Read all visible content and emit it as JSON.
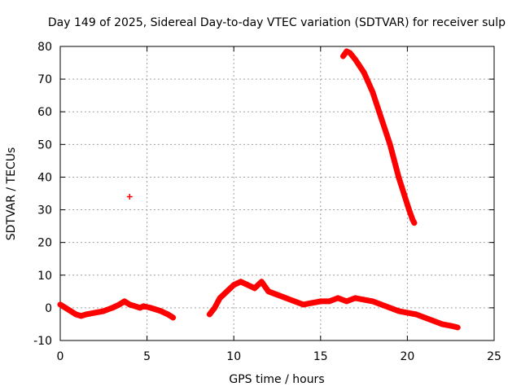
{
  "chart_data": {
    "type": "scatter",
    "title": "Day 149 of 2025, Sidereal Day-to-day VTEC variation (SDTVAR) for receiver sulp",
    "xlabel": "GPS time / hours",
    "ylabel": "SDTVAR / TECUs",
    "xlim": [
      0,
      25
    ],
    "ylim": [
      -10,
      80
    ],
    "grid": true,
    "xticks": [
      0,
      5,
      10,
      15,
      20,
      25
    ],
    "yticks": [
      -10,
      0,
      10,
      20,
      30,
      40,
      50,
      60,
      70,
      80
    ],
    "xtick_labels": [
      "0",
      "5",
      "10",
      "15",
      "20",
      "25"
    ],
    "ytick_labels": [
      "-10",
      "0",
      "10",
      "20",
      "30",
      "40",
      "50",
      "60",
      "70",
      "80"
    ],
    "marker": "+",
    "color": "#ff0000",
    "series": [
      {
        "name": "segment-1",
        "points": [
          [
            0,
            1
          ],
          [
            0.3,
            0
          ],
          [
            0.6,
            -1
          ],
          [
            0.9,
            -2
          ],
          [
            1.2,
            -2.5
          ],
          [
            1.5,
            -2
          ],
          [
            2.0,
            -1.5
          ],
          [
            2.5,
            -1
          ],
          [
            3.0,
            0
          ],
          [
            3.4,
            1
          ],
          [
            3.7,
            2
          ],
          [
            4.0,
            1
          ],
          [
            4.3,
            0.5
          ],
          [
            4.6,
            0
          ],
          [
            4.8,
            0.5
          ],
          [
            5.2,
            0
          ],
          [
            5.5,
            -0.5
          ],
          [
            5.8,
            -1
          ],
          [
            6.2,
            -2
          ],
          [
            6.5,
            -3
          ]
        ]
      },
      {
        "name": "isolated-point",
        "points": [
          [
            4.0,
            34
          ]
        ]
      },
      {
        "name": "segment-2",
        "points": [
          [
            8.6,
            -2
          ],
          [
            8.9,
            0
          ],
          [
            9.2,
            3
          ],
          [
            9.6,
            5
          ],
          [
            10.0,
            7
          ],
          [
            10.4,
            8
          ],
          [
            10.8,
            7
          ],
          [
            11.2,
            6
          ],
          [
            11.6,
            8
          ],
          [
            12.0,
            5
          ],
          [
            12.5,
            4
          ],
          [
            13.0,
            3
          ],
          [
            13.5,
            2
          ],
          [
            14.0,
            1
          ],
          [
            14.5,
            1.5
          ],
          [
            15.0,
            2
          ],
          [
            15.5,
            2
          ],
          [
            16.0,
            3
          ],
          [
            16.5,
            2
          ],
          [
            17.0,
            3
          ],
          [
            17.5,
            2.5
          ],
          [
            18.0,
            2
          ],
          [
            18.5,
            1
          ],
          [
            19.0,
            0
          ],
          [
            19.5,
            -1
          ],
          [
            20.0,
            -1.5
          ],
          [
            20.5,
            -2
          ],
          [
            21.0,
            -3
          ],
          [
            21.5,
            -4
          ],
          [
            22.0,
            -5
          ],
          [
            22.5,
            -5.5
          ],
          [
            22.9,
            -6
          ]
        ]
      },
      {
        "name": "steep-arc",
        "points": [
          [
            16.3,
            77
          ],
          [
            16.5,
            78.5
          ],
          [
            16.7,
            78
          ],
          [
            17.0,
            76
          ],
          [
            17.5,
            72
          ],
          [
            18.0,
            66
          ],
          [
            18.5,
            58
          ],
          [
            19.0,
            50
          ],
          [
            19.5,
            40
          ],
          [
            19.8,
            35
          ],
          [
            20.1,
            30
          ],
          [
            20.3,
            27
          ],
          [
            20.4,
            26
          ]
        ]
      }
    ]
  }
}
